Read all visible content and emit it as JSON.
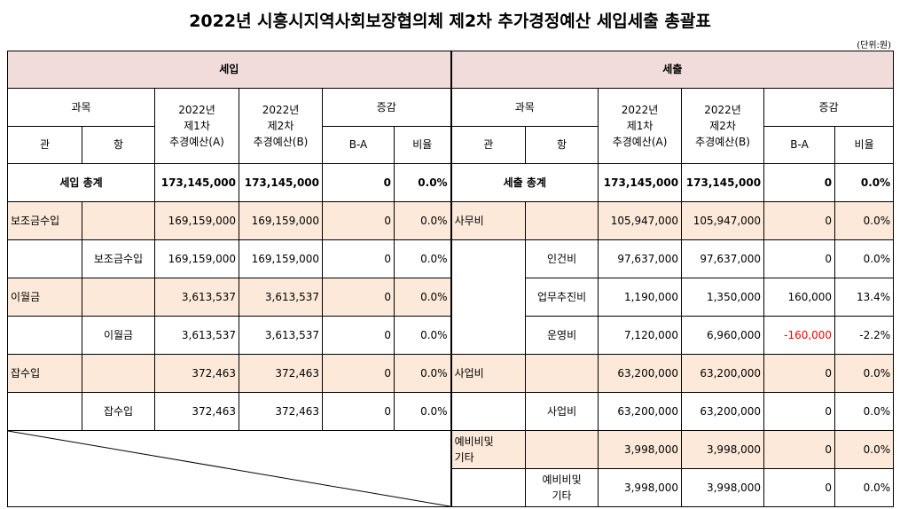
{
  "title": "2022년 시흥시지역사회보장협의체 제2차 추가경정예산 세입세출 총괄표",
  "unit": "(단위:원)",
  "income": {
    "header": "세입",
    "col_gwamok": "과목",
    "col_gwan": "관",
    "col_hang": "항",
    "col_a": "2022년\n제1차\n추경예산(A)",
    "col_b": "2022년\n제2차\n추경예산(B)",
    "col_change": "증감",
    "col_ba": "B-A",
    "col_ratio": "비율",
    "total": {
      "label": "세입 총계",
      "a": "173,145,000",
      "b": "173,145,000",
      "ba": "0",
      "ratio": "0.0%"
    },
    "rows": [
      {
        "gwan": "보조금수입",
        "hang": "",
        "a": "169,159,000",
        "b": "169,159,000",
        "ba": "0",
        "ratio": "0.0%"
      },
      {
        "gwan": "",
        "hang": "보조금수입",
        "a": "169,159,000",
        "b": "169,159,000",
        "ba": "0",
        "ratio": "0.0%"
      },
      {
        "gwan": "이월금",
        "hang": "",
        "a": "3,613,537",
        "b": "3,613,537",
        "ba": "0",
        "ratio": "0.0%"
      },
      {
        "gwan": "",
        "hang": "이월금",
        "a": "3,613,537",
        "b": "3,613,537",
        "ba": "0",
        "ratio": "0.0%"
      },
      {
        "gwan": "잡수입",
        "hang": "",
        "a": "372,463",
        "b": "372,463",
        "ba": "0",
        "ratio": "0.0%"
      },
      {
        "gwan": "",
        "hang": "잡수입",
        "a": "372,463",
        "b": "372,463",
        "ba": "0",
        "ratio": "0.0%"
      }
    ]
  },
  "expense": {
    "header": "세출",
    "col_gwamok": "과목",
    "col_gwan": "관",
    "col_hang": "항",
    "col_a": "2022년\n제1차\n추경예산(A)",
    "col_b": "2022년\n제2차\n추경예산(B)",
    "col_change": "증감",
    "col_ba": "B-A",
    "col_ratio": "비율",
    "total": {
      "label": "세출 총계",
      "a": "173,145,000",
      "b": "173,145,000",
      "ba": "0",
      "ratio": "0.0%"
    },
    "rows": [
      {
        "gwan": "사무비",
        "hang": "",
        "a": "105,947,000",
        "b": "105,947,000",
        "ba": "0",
        "ratio": "0.0%"
      },
      {
        "gwan": "",
        "hang": "인건비",
        "a": "97,637,000",
        "b": "97,637,000",
        "ba": "0",
        "ratio": "0.0%"
      },
      {
        "gwan": "",
        "hang": "업무추진비",
        "a": "1,190,000",
        "b": "1,350,000",
        "ba": "160,000",
        "ratio": "13.4%"
      },
      {
        "gwan": "",
        "hang": "운영비",
        "a": "7,120,000",
        "b": "6,960,000",
        "ba": "-160,000",
        "ratio": "-2.2%"
      },
      {
        "gwan": "사업비",
        "hang": "",
        "a": "63,200,000",
        "b": "63,200,000",
        "ba": "0",
        "ratio": "0.0%"
      },
      {
        "gwan": "",
        "hang": "사업비",
        "a": "63,200,000",
        "b": "63,200,000",
        "ba": "0",
        "ratio": "0.0%"
      },
      {
        "gwan": "예비비및\n기타",
        "hang": "",
        "a": "3,998,000",
        "b": "3,998,000",
        "ba": "0",
        "ratio": "0.0%"
      },
      {
        "gwan": "",
        "hang": "예비비및\n기타",
        "a": "3,998,000",
        "b": "3,998,000",
        "ba": "0",
        "ratio": "0.0%"
      }
    ]
  },
  "colors": {
    "header_bg": "#f2dcdb",
    "row_bg": "#fde9d9",
    "negative": "#ff0000"
  }
}
